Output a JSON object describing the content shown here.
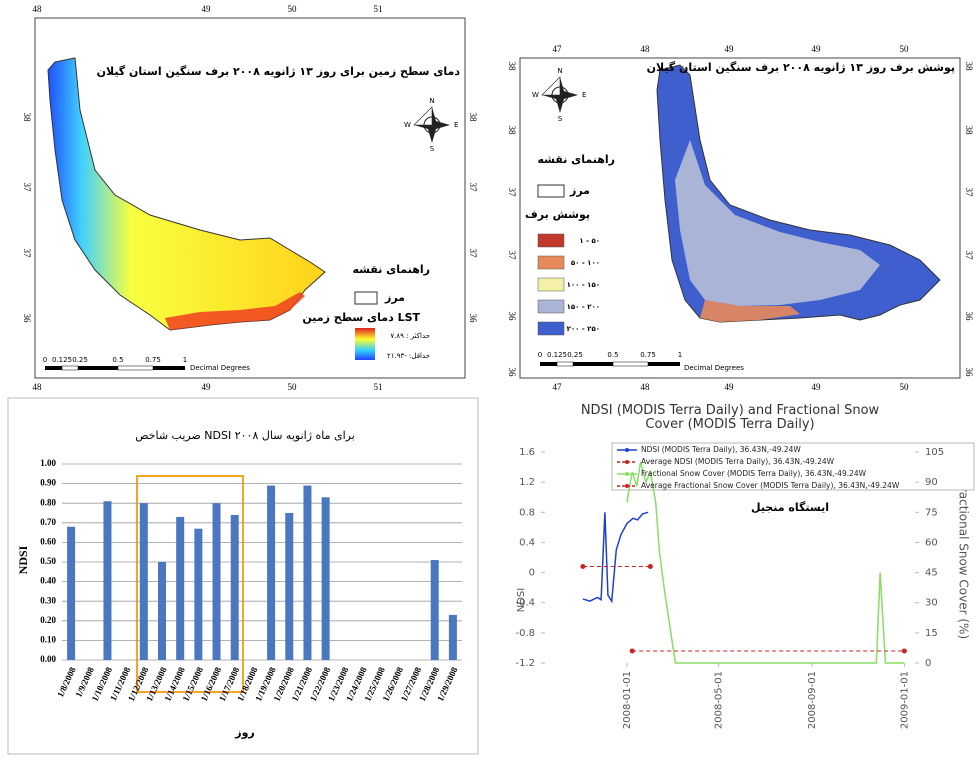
{
  "chart_data": [
    {
      "type": "map",
      "title": "دمای سطح زمین برای روز ۱۳ ژانویه ۲۰۰۸ برف سنگین استان گیلان",
      "lon_labels": [
        "48",
        "49",
        "50",
        "51"
      ],
      "lat_labels": [
        "38",
        "37",
        "37",
        "36"
      ],
      "compass": [
        "N",
        "S",
        "E",
        "W"
      ],
      "legend_title": "راهنمای نقشه",
      "boundary_label": "مرز",
      "layer_label": "دمای سطح زمین LST",
      "max_label": "حداکثر : ۷.۸۹",
      "min_label": "حداقل: -۲۱.۹۳",
      "scale_labels": [
        "0",
        "0.125",
        "0.25",
        "0.5",
        "0.75",
        "1"
      ],
      "scale_unit": "Decimal Degrees"
    },
    {
      "type": "map",
      "title": "پوشش برف روز ۱۳ ژانویه ۲۰۰۸ برف سنگین استان گیلان",
      "lon_labels": [
        "47",
        "48",
        "49",
        "49",
        "50"
      ],
      "lat_labels": [
        "38",
        "38",
        "37",
        "37",
        "36",
        "36"
      ],
      "compass": [
        "N",
        "S",
        "E",
        "W"
      ],
      "legend_title": "راهنمای نقشه",
      "boundary_label": "مرز",
      "layer_label": "پوشش برف",
      "classes": [
        {
          "label": "۱ - ۵۰",
          "color": "#c0392b"
        },
        {
          "label": "۵۰ - ۱۰۰",
          "color": "#e8895a"
        },
        {
          "label": "۱۰۰ - ۱۵۰",
          "color": "#f5f0a8"
        },
        {
          "label": "۱۵۰ - ۲۰۰",
          "color": "#a9b4d6"
        },
        {
          "label": "۲۰۰ - ۲۵۰",
          "color": "#3f5fcf"
        }
      ],
      "scale_labels": [
        "0",
        "0.125",
        "0.25",
        "0.5",
        "0.75",
        "1"
      ],
      "scale_unit": "Decimal Degrees"
    },
    {
      "type": "bar",
      "title": "ضریب شاخص NDSI برای ماه ژانویه سال ۲۰۰۸",
      "y_label": "NDSI",
      "x_label": "روز",
      "categories": [
        "1/8/2008",
        "1/9/2008",
        "1/10/2008",
        "1/11/2008",
        "1/12/2008",
        "1/13/2008",
        "1/14/2008",
        "1/15/2008",
        "1/16/2008",
        "1/17/2008",
        "1/18/2008",
        "1/19/2008",
        "1/20/2008",
        "1/21/2008",
        "1/22/2008",
        "1/23/2008",
        "1/24/2008",
        "1/25/2008",
        "1/26/2008",
        "1/27/2008",
        "1/28/2008",
        "1/29/2008"
      ],
      "values": [
        0.68,
        null,
        0.81,
        null,
        0.8,
        0.5,
        0.73,
        0.67,
        0.8,
        0.74,
        null,
        0.89,
        0.75,
        0.89,
        0.83,
        null,
        null,
        null,
        null,
        null,
        0.51,
        0.23
      ],
      "color": "#4a78c0",
      "ylim": [
        0,
        1
      ],
      "yticks": [
        {
          "value": 0,
          "label": "0.00"
        },
        {
          "value": 0.1,
          "label": "0.10"
        },
        {
          "value": 0.2,
          "label": "0.20"
        },
        {
          "value": 0.3,
          "label": "0.30"
        },
        {
          "value": 0.4,
          "label": "0.40"
        },
        {
          "value": 0.5,
          "label": "0.50"
        },
        {
          "value": 0.6,
          "label": "0.60"
        },
        {
          "value": 0.7,
          "label": "0.70"
        },
        {
          "value": 0.8,
          "label": "0.80"
        },
        {
          "value": 0.9,
          "label": "0.90"
        },
        {
          "value": 1,
          "label": "1.00"
        }
      ],
      "grid": true
    },
    {
      "type": "line",
      "title": "NDSI (MODIS Terra Daily) and Fractional Snow Cover (MODIS Terra Daily)",
      "y_label": "NDSI",
      "y2_label": "Fractional Snow Cover (%)",
      "annotation": "ایستگاه منجیل",
      "xlim": [
        "2007-09-15",
        "2009-01-15"
      ],
      "xticks": [
        "2008-01-01",
        "2008-05-01",
        "2008-09-01",
        "2009-01-01"
      ],
      "ylim": [
        -1.2,
        1.6
      ],
      "yticks": [
        -1.2,
        -0.8,
        -0.4,
        0,
        0.4,
        0.8,
        1.2,
        1.6
      ],
      "y2lim": [
        0,
        105
      ],
      "y2ticks": [
        0,
        15,
        30,
        45,
        60,
        75,
        90,
        105
      ],
      "grid": false,
      "series": [
        {
          "name": "NDSI (MODIS Terra Daily), 36.43N,-49.24W",
          "color": "#1f3fcf",
          "axis": "y",
          "style": "solid",
          "markers": false,
          "x": [
            "2007-11-04",
            "2007-11-13",
            "2007-11-23",
            "2007-11-28",
            "2007-12-03",
            "2007-12-07",
            "2007-12-12",
            "2007-12-18",
            "2007-12-24",
            "2008-01-01",
            "2008-01-09",
            "2008-01-15",
            "2008-01-22",
            "2008-01-29"
          ],
          "values": [
            -0.35,
            -0.38,
            -0.33,
            -0.36,
            0.8,
            -0.3,
            -0.38,
            0.3,
            0.5,
            0.65,
            0.72,
            0.7,
            0.78,
            0.8
          ]
        },
        {
          "name": "Average NDSI (MODIS Terra Daily), 36.43N,-49.24W",
          "color": "#cc2222",
          "axis": "y",
          "style": "dashed",
          "markers": true,
          "x": [
            "2007-11-04",
            "2008-02-01"
          ],
          "values": [
            0.08,
            0.08
          ]
        },
        {
          "name": "Fractional Snow Cover (MODIS Terra Daily), 36.43N,-49.24W",
          "color": "#88dd66",
          "axis": "y2",
          "style": "solid",
          "markers": false,
          "x": [
            "2008-01-01",
            "2008-01-08",
            "2008-01-14",
            "2008-01-19",
            "2008-01-26",
            "2008-02-01",
            "2008-02-08",
            "2008-02-13",
            "2008-02-20",
            "2008-02-26",
            "2008-03-05",
            "2008-11-25",
            "2008-11-30",
            "2008-12-07",
            "2009-01-01"
          ],
          "values": [
            80,
            95,
            88,
            100,
            90,
            95,
            80,
            55,
            35,
            20,
            0,
            0,
            45,
            0,
            0
          ]
        },
        {
          "name": "Average Fractional Snow Cover (MODIS Terra Daily), 36.43N,-49.24W",
          "color": "#cc2222",
          "axis": "y2",
          "style": "dashed",
          "markers": true,
          "x": [
            "2008-01-08",
            "2009-01-01"
          ],
          "values": [
            6,
            6
          ]
        }
      ]
    }
  ]
}
